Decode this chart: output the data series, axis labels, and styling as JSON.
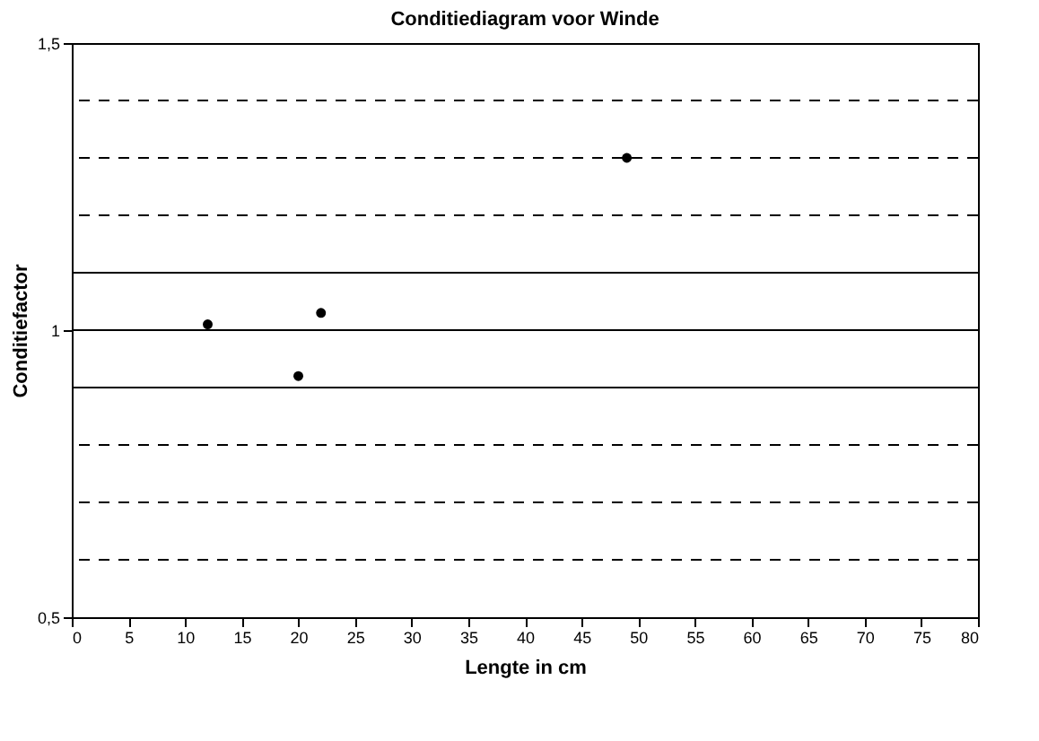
{
  "chart_data": {
    "type": "scatter",
    "title": "Conditiediagram voor Winde",
    "xlabel": "Lengte in cm",
    "ylabel": "Conditiefactor",
    "x": [
      12,
      20,
      22,
      49
    ],
    "values": [
      1.01,
      0.92,
      1.03,
      1.3
    ],
    "color": "#000000",
    "marker": "circle",
    "xlim": [
      0,
      80
    ],
    "xticks": [
      0,
      5,
      10,
      15,
      20,
      25,
      30,
      35,
      40,
      45,
      50,
      55,
      60,
      65,
      70,
      75,
      80
    ],
    "ylim": [
      0.5,
      1.5
    ],
    "yticks": [
      {
        "value": 0.5,
        "label": "0,5"
      },
      1,
      {
        "value": 1.5,
        "label": "1,5"
      }
    ],
    "ref_lines": [
      {
        "axis": "y",
        "value": 0.6,
        "line_style": "dashed"
      },
      {
        "axis": "y",
        "value": 0.7,
        "line_style": "dashed"
      },
      {
        "axis": "y",
        "value": 0.8,
        "line_style": "dashed"
      },
      {
        "axis": "y",
        "value": 0.9,
        "line_style": "solid"
      },
      {
        "axis": "y",
        "value": 1.0,
        "line_style": "solid"
      },
      {
        "axis": "y",
        "value": 1.1,
        "line_style": "solid"
      },
      {
        "axis": "y",
        "value": 1.2,
        "line_style": "dashed"
      },
      {
        "axis": "y",
        "value": 1.3,
        "line_style": "dashed"
      },
      {
        "axis": "y",
        "value": 1.4,
        "line_style": "dashed"
      }
    ]
  }
}
